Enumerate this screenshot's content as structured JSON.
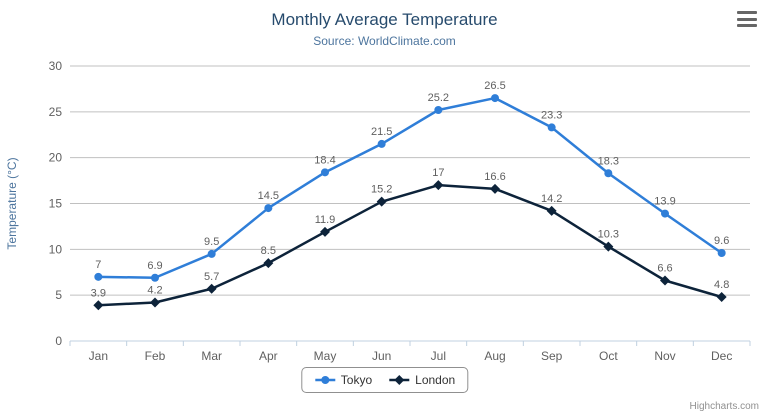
{
  "chart": {
    "credits": "Highcharts.com",
    "menu_icon": "hamburger-icon"
  },
  "chart_data": {
    "type": "line",
    "title": "Monthly Average Temperature",
    "subtitle": "Source: WorldClimate.com",
    "categories": [
      "Jan",
      "Feb",
      "Mar",
      "Apr",
      "May",
      "Jun",
      "Jul",
      "Aug",
      "Sep",
      "Oct",
      "Nov",
      "Dec"
    ],
    "series": [
      {
        "name": "Tokyo",
        "color": "#2f7ed8",
        "marker": "circle",
        "values": [
          7,
          6.9,
          9.5,
          14.5,
          18.4,
          21.5,
          25.2,
          26.5,
          23.3,
          18.3,
          13.9,
          9.6
        ]
      },
      {
        "name": "London",
        "color": "#0d233a",
        "marker": "diamond",
        "values": [
          3.9,
          4.2,
          5.7,
          8.5,
          11.9,
          15.2,
          17,
          16.6,
          14.2,
          10.3,
          6.6,
          4.8
        ]
      }
    ],
    "xlabel": "",
    "ylabel": "Temperature (°C)",
    "ylim": [
      0,
      30
    ],
    "yticks": [
      0,
      5,
      10,
      15,
      20,
      25,
      30
    ],
    "grid": true,
    "data_labels": true,
    "legend_position": "bottom",
    "colors": {
      "grid": "#C0C0C0",
      "axis_line": "#C0D0E0",
      "axis_label": "#606060",
      "axis_title": "#4d759e",
      "data_label": "#606060",
      "title": "#274b6d",
      "subtitle": "#4d759e"
    }
  }
}
